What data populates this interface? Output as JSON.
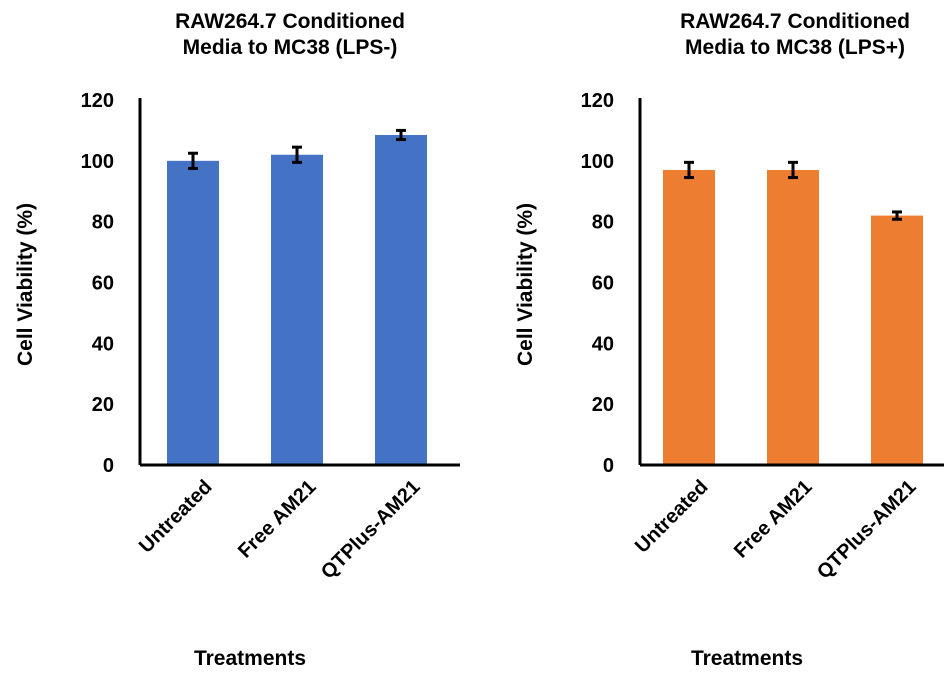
{
  "chart_data": [
    {
      "type": "bar",
      "title": [
        "RAW264.7 Conditioned",
        "Media to MC38 (LPS-)"
      ],
      "xlabel": "Treatments",
      "ylabel": "Cell Viability (%)",
      "ylim": [
        0,
        120
      ],
      "yticks": [
        "0",
        "20",
        "40",
        "60",
        "80",
        "100",
        "120"
      ],
      "categories": [
        "Untreated",
        "Free AM21",
        "QTPlus-AM21"
      ],
      "values": [
        100,
        102,
        108.5
      ],
      "errors": [
        2.5,
        2.5,
        1.5
      ],
      "color": "#4472C4",
      "grid": false,
      "legend": "none"
    },
    {
      "type": "bar",
      "title": [
        "RAW264.7 Conditioned",
        "Media to MC38 (LPS+)"
      ],
      "xlabel": "Treatments",
      "ylabel": "Cell Viability (%)",
      "ylim": [
        0,
        120
      ],
      "yticks": [
        "0",
        "20",
        "40",
        "60",
        "80",
        "100",
        "120"
      ],
      "categories": [
        "Untreated",
        "Free AM21",
        "QTPlus-AM21"
      ],
      "values": [
        97,
        97,
        82
      ],
      "errors": [
        2.5,
        2.5,
        1.2
      ],
      "color": "#ED7D31",
      "grid": false,
      "legend": "none"
    }
  ]
}
